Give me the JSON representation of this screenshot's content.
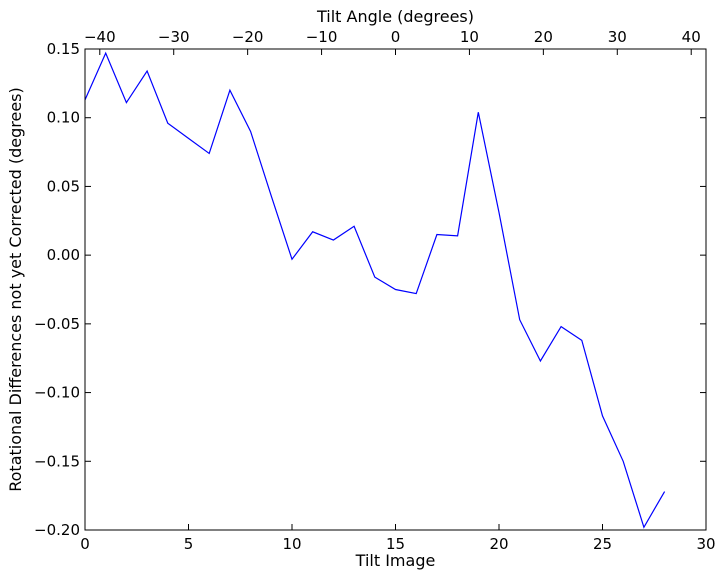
{
  "chart_data": {
    "type": "line",
    "xlabel": "Tilt Image",
    "ylabel": "Rotational Differences not yet Corrected (degrees)",
    "top_xlabel": "Tilt Angle (degrees)",
    "xlim": [
      0,
      30
    ],
    "ylim": [
      -0.2,
      0.15
    ],
    "top_xlim": [
      -42,
      42
    ],
    "xticks": [
      0,
      5,
      10,
      15,
      20,
      25,
      30
    ],
    "xtick_labels": [
      "0",
      "5",
      "10",
      "15",
      "20",
      "25",
      "30"
    ],
    "yticks": [
      -0.2,
      -0.15,
      -0.1,
      -0.05,
      0.0,
      0.05,
      0.1,
      0.15
    ],
    "ytick_labels": [
      "−0.20",
      "−0.15",
      "−0.10",
      "−0.05",
      "0.00",
      "0.05",
      "0.10",
      "0.15"
    ],
    "top_xticks": [
      -40,
      -30,
      -20,
      -10,
      0,
      10,
      20,
      30,
      40
    ],
    "top_xtick_labels": [
      "−40",
      "−30",
      "−20",
      "−10",
      "0",
      "10",
      "20",
      "30",
      "40"
    ],
    "grid": false,
    "series": [
      {
        "color": "#0000ff",
        "x": [
          0,
          1,
          2,
          3,
          4,
          5,
          6,
          7,
          8,
          9,
          10,
          11,
          12,
          13,
          14,
          15,
          16,
          17,
          18,
          19,
          20,
          21,
          22,
          23,
          24,
          25,
          26,
          27,
          28
        ],
        "y": [
          0.113,
          0.147,
          0.111,
          0.134,
          0.096,
          0.085,
          0.074,
          0.12,
          0.09,
          0.043,
          -0.003,
          0.017,
          0.011,
          0.021,
          -0.016,
          -0.025,
          -0.028,
          0.015,
          0.014,
          0.104,
          0.031,
          -0.047,
          -0.077,
          -0.052,
          -0.062,
          -0.117,
          -0.15,
          -0.198,
          -0.172
        ]
      }
    ]
  }
}
